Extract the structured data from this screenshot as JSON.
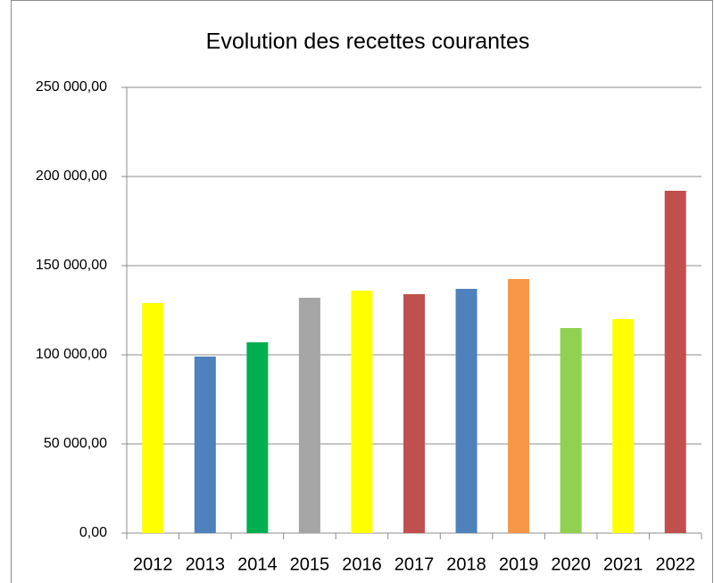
{
  "chart_data": {
    "type": "bar",
    "title": "Evolution des recettes courantes",
    "categories": [
      "2012",
      "2013",
      "2014",
      "2015",
      "2016",
      "2017",
      "2018",
      "2019",
      "2020",
      "2021",
      "2022"
    ],
    "values": [
      129000,
      99000,
      107000,
      132000,
      136000,
      134000,
      137000,
      142500,
      115000,
      120000,
      192000
    ],
    "colors": [
      "#ffff00",
      "#4f81bd",
      "#00b050",
      "#a5a5a5",
      "#ffff00",
      "#c0504d",
      "#4f81bd",
      "#f79646",
      "#92d050",
      "#ffff00",
      "#c0504d"
    ],
    "ylim": [
      0,
      250000
    ],
    "yticks": [
      {
        "value": 0,
        "label": "0,00"
      },
      {
        "value": 50000,
        "label": "50 000,00"
      },
      {
        "value": 100000,
        "label": "100 000,00"
      },
      {
        "value": 150000,
        "label": "150 000,00"
      },
      {
        "value": 200000,
        "label": "200 000,00"
      },
      {
        "value": 250000,
        "label": "250 000,00"
      }
    ],
    "grid": true
  }
}
